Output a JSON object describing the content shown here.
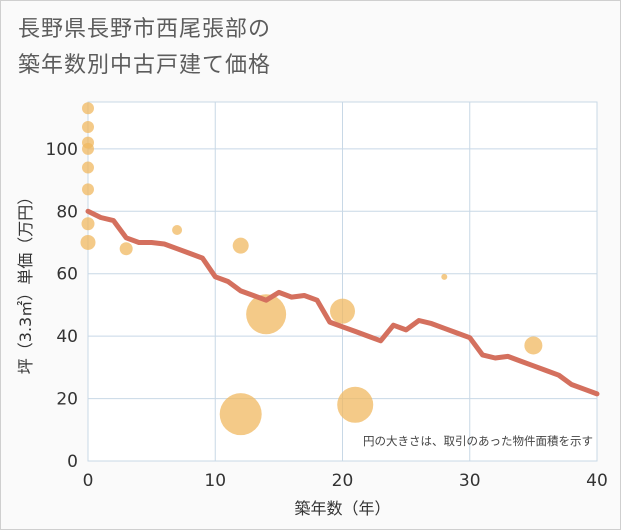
{
  "title_line1": "長野県長野市西尾張部の",
  "title_line2": "築年数別中古戸建て価格",
  "chart_data": {
    "type": "scatter+line",
    "xlabel": "築年数（年）",
    "ylabel": "坪（3.3㎡）単価（万円）",
    "xlim": [
      0,
      40
    ],
    "ylim": [
      0,
      115
    ],
    "xticks": [
      0,
      10,
      20,
      30,
      40
    ],
    "yticks": [
      0,
      20,
      40,
      60,
      80,
      100
    ],
    "grid": true,
    "note": "円の大きさは、取引のあった物件面積を示す",
    "scatter": [
      {
        "x": 0,
        "y": 113,
        "size": 1.2
      },
      {
        "x": 0,
        "y": 107,
        "size": 1.2
      },
      {
        "x": 0,
        "y": 102,
        "size": 1.2
      },
      {
        "x": 0,
        "y": 100,
        "size": 1.2
      },
      {
        "x": 0,
        "y": 94,
        "size": 1.2
      },
      {
        "x": 0,
        "y": 87,
        "size": 1.2
      },
      {
        "x": 0,
        "y": 76,
        "size": 1.3
      },
      {
        "x": 0,
        "y": 70,
        "size": 1.5
      },
      {
        "x": 3,
        "y": 68,
        "size": 1.3
      },
      {
        "x": 7,
        "y": 74,
        "size": 1.0
      },
      {
        "x": 12,
        "y": 69,
        "size": 1.6
      },
      {
        "x": 12,
        "y": 15,
        "size": 4.2
      },
      {
        "x": 14,
        "y": 47,
        "size": 4.0
      },
      {
        "x": 20,
        "y": 48,
        "size": 2.5
      },
      {
        "x": 21,
        "y": 18,
        "size": 3.6
      },
      {
        "x": 28,
        "y": 59,
        "size": 0.6
      },
      {
        "x": 35,
        "y": 37,
        "size": 1.8
      }
    ],
    "trend": {
      "x": [
        0,
        1,
        2,
        3,
        4,
        5,
        6,
        7,
        8,
        9,
        10,
        11,
        12,
        13,
        14,
        15,
        16,
        17,
        18,
        19,
        20,
        21,
        22,
        23,
        24,
        25,
        26,
        27,
        28,
        29,
        30,
        31,
        32,
        33,
        34,
        35,
        36,
        37,
        38,
        39,
        40
      ],
      "y": [
        80,
        78,
        77,
        71.5,
        70,
        70,
        69.5,
        68,
        66.5,
        65,
        59,
        57.5,
        54.5,
        53,
        51.5,
        54,
        52.5,
        53,
        51.5,
        44.5,
        43,
        41.5,
        40,
        38.5,
        43.5,
        42,
        45,
        44,
        42.5,
        41,
        39.5,
        34,
        33,
        33.5,
        32,
        30.5,
        29,
        27.5,
        24.5,
        23,
        21.5
      ]
    },
    "colors": {
      "scatter": "#f0b860",
      "trend": "#d4705e",
      "grid": "#c8d8e6",
      "tick": "#333333"
    }
  }
}
